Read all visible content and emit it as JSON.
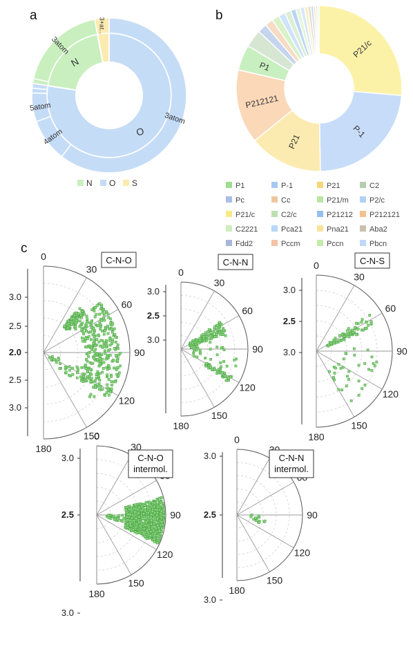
{
  "panel_labels": {
    "a": "a",
    "b": "b",
    "c": "c"
  },
  "chart_data": [
    {
      "id": "a",
      "type": "pie",
      "subtype": "sunburst",
      "legend": [
        "N",
        "O",
        "S"
      ],
      "legend_position": "bottom",
      "colors": {
        "N": "#c9efbf",
        "O": "#c5dcf7",
        "S": "#fcebb0"
      },
      "inner": [
        {
          "name": "N",
          "value": 19.5,
          "label": "N"
        },
        {
          "name": "O",
          "value": 77.5,
          "label": "O"
        },
        {
          "name": "S",
          "value": 3.0,
          "label": ""
        }
      ],
      "outer": [
        {
          "group": "N",
          "value": 18.5,
          "label": "3atom"
        },
        {
          "group": "N",
          "value": 1.0,
          "label": ""
        },
        {
          "group": "O",
          "value": 1.0,
          "label": ""
        },
        {
          "group": "O",
          "value": 1.0,
          "label": ""
        },
        {
          "group": "O",
          "value": 6.0,
          "label": "5atom"
        },
        {
          "group": "O",
          "value": 9.0,
          "label": "4atom"
        },
        {
          "group": "O",
          "value": 60.5,
          "label": "3atom"
        },
        {
          "group": "S",
          "value": 3.0,
          "label": "3+at..."
        }
      ]
    },
    {
      "id": "b",
      "type": "pie",
      "subtype": "donut",
      "slices": [
        {
          "name": "P21/c",
          "value": 26.5,
          "color": "#fbf2a8",
          "label": "P21/c"
        },
        {
          "name": "P-1",
          "value": 23.5,
          "color": "#c7dcf8",
          "label": "P-1"
        },
        {
          "name": "P21",
          "value": 14.5,
          "color": "#fcebb0",
          "label": "P21"
        },
        {
          "name": "P212121",
          "value": 14.5,
          "color": "#fad8b8",
          "label": "P212121"
        },
        {
          "name": "P1",
          "value": 5.0,
          "color": "#c8efbf",
          "label": "P1"
        },
        {
          "name": "C2",
          "value": 3.5,
          "color": "#d6e6d2",
          "label": ""
        },
        {
          "name": "Pc",
          "value": 1.8,
          "color": "#c6d4ee",
          "label": ""
        },
        {
          "name": "Cc",
          "value": 1.6,
          "color": "#f6dcc4",
          "label": ""
        },
        {
          "name": "P21/m",
          "value": 1.5,
          "color": "#d9f2c9",
          "label": ""
        },
        {
          "name": "P2/c",
          "value": 1.3,
          "color": "#cfe3fa",
          "label": ""
        },
        {
          "name": "C2/c",
          "value": 1.2,
          "color": "#dcefd6",
          "label": ""
        },
        {
          "name": "P21212",
          "value": 1.0,
          "color": "#bcd4f5",
          "label": ""
        },
        {
          "name": "C2221",
          "value": 0.9,
          "color": "#e4f6dc",
          "label": ""
        },
        {
          "name": "Pca21",
          "value": 0.8,
          "color": "#d7e7fb",
          "label": ""
        },
        {
          "name": "Pna21",
          "value": 0.7,
          "color": "#fcf0c4",
          "label": ""
        },
        {
          "name": "Aba2",
          "value": 0.6,
          "color": "#e2ddd2",
          "label": ""
        },
        {
          "name": "Fdd2",
          "value": 0.5,
          "color": "#cfd8ea",
          "label": ""
        },
        {
          "name": "Pccm",
          "value": 0.4,
          "color": "#f8dcc8",
          "label": ""
        },
        {
          "name": "Pccn",
          "value": 0.4,
          "color": "#e0f4d4",
          "label": ""
        },
        {
          "name": "Pbcn",
          "value": 0.3,
          "color": "#dcebfb",
          "label": ""
        }
      ],
      "legend": [
        {
          "name": "P1",
          "color": "#9fdd90"
        },
        {
          "name": "P-1",
          "color": "#a8c8f4"
        },
        {
          "name": "P21",
          "color": "#f5d67a"
        },
        {
          "name": "C2",
          "color": "#b5ccb0"
        },
        {
          "name": "Pc",
          "color": "#a9bde6"
        },
        {
          "name": "Cc",
          "color": "#f0c6a0"
        },
        {
          "name": "P21/m",
          "color": "#b9e6a3"
        },
        {
          "name": "P2/c",
          "color": "#b1d2f6"
        },
        {
          "name": "P21/c",
          "color": "#f7ea86"
        },
        {
          "name": "C2/c",
          "color": "#bde0b1"
        },
        {
          "name": "P21212",
          "color": "#96bdf0"
        },
        {
          "name": "P212121",
          "color": "#f5c08d"
        },
        {
          "name": "C2221",
          "color": "#cdeebf"
        },
        {
          "name": "Pca21",
          "color": "#b9d7f8"
        },
        {
          "name": "Pna21",
          "color": "#f8e29b"
        },
        {
          "name": "Aba2",
          "color": "#c9c0ad"
        },
        {
          "name": "Fdd2",
          "color": "#a8b7d6"
        },
        {
          "name": "Pccm",
          "color": "#f2c3a4"
        },
        {
          "name": "Pccn",
          "color": "#c4ebab"
        },
        {
          "name": "Pbcn",
          "color": "#bfdaf8"
        }
      ]
    },
    {
      "id": "c1",
      "type": "scatter",
      "coordinate": "polar",
      "title": "C-N-O",
      "angle_ticks": [
        "0",
        "30",
        "60",
        "90",
        "120",
        "150",
        "180"
      ],
      "radius_ticks_left": [
        "3.0",
        "2.5",
        "2.0",
        "2.5",
        "3.0"
      ],
      "radial_range": [
        2.0,
        3.2
      ],
      "clusters": [
        {
          "theta": [
            38,
            48
          ],
          "r": [
            2.45,
            2.8
          ],
          "count": 90
        },
        {
          "theta": [
            48,
            90
          ],
          "r": [
            2.55,
            3.05
          ],
          "count": 170
        },
        {
          "theta": [
            90,
            125
          ],
          "r": [
            2.6,
            3.1
          ],
          "count": 150
        },
        {
          "theta": [
            110,
            135
          ],
          "r": [
            2.1,
            3.0
          ],
          "count": 40
        }
      ],
      "marker_color": "#4ca84a"
    },
    {
      "id": "c2",
      "type": "scatter",
      "coordinate": "polar",
      "title": "C-N-N",
      "angle_ticks": [
        "0",
        "30",
        "60",
        "90",
        "120",
        "150",
        "180"
      ],
      "radius_ticks_left": [
        "3.0",
        "2.5",
        "3.0"
      ],
      "radial_range": [
        2.5,
        3.2
      ],
      "clusters": [
        {
          "theta": [
            55,
            72
          ],
          "r": [
            2.6,
            3.0
          ],
          "count": 110
        },
        {
          "theta": [
            72,
            100
          ],
          "r": [
            2.6,
            3.0
          ],
          "count": 20
        },
        {
          "theta": [
            100,
            120
          ],
          "r": [
            2.6,
            3.1
          ],
          "count": 15
        },
        {
          "theta": [
            118,
            125
          ],
          "r": [
            2.8,
            3.1
          ],
          "count": 40
        }
      ],
      "marker_color": "#4ca84a"
    },
    {
      "id": "c3",
      "type": "scatter",
      "coordinate": "polar",
      "title": "C-N-S",
      "angle_ticks": [
        "0",
        "30",
        "60",
        "90",
        "120",
        "150",
        "180"
      ],
      "radius_ticks_left": [
        "3.0",
        "2.5",
        "3.0"
      ],
      "radial_range": [
        2.5,
        3.2
      ],
      "clusters": [
        {
          "theta": [
            55,
            68
          ],
          "r": [
            2.6,
            3.1
          ],
          "count": 70
        },
        {
          "theta": [
            80,
            110
          ],
          "r": [
            2.6,
            3.1
          ],
          "count": 14
        },
        {
          "theta": [
            118,
            150
          ],
          "r": [
            2.7,
            3.1
          ],
          "count": 20
        }
      ],
      "marker_color": "#4ca84a"
    },
    {
      "id": "c4",
      "type": "scatter",
      "coordinate": "polar",
      "title": "C-N-O\nintermol.",
      "title_lines": [
        "C-N-O",
        "intermol."
      ],
      "angle_ticks": [
        "0",
        "30",
        "60",
        "90",
        "120",
        "150",
        "180"
      ],
      "radius_ticks_left": [
        "3.0",
        "2.5",
        "3.0"
      ],
      "radial_range": [
        2.5,
        3.2
      ],
      "clusters": [
        {
          "theta": [
            75,
            115
          ],
          "r": [
            2.8,
            3.2
          ],
          "count": 700
        },
        {
          "theta": [
            90,
            105
          ],
          "r": [
            2.6,
            2.8
          ],
          "count": 30
        }
      ],
      "marker_color": "#4ca84a"
    },
    {
      "id": "c5",
      "type": "scatter",
      "coordinate": "polar",
      "title": "C-N-N\nintermol.",
      "title_lines": [
        "C-N-N",
        "intermol."
      ],
      "angle_ticks": [
        "0",
        "30",
        "60",
        "90",
        "120",
        "150",
        "180"
      ],
      "radius_ticks_left": [
        "3.0",
        "2.5",
        "3.0"
      ],
      "radial_range": [
        2.5,
        3.2
      ],
      "clusters": [
        {
          "theta": [
            85,
            110
          ],
          "r": [
            2.65,
            2.85
          ],
          "count": 14
        }
      ],
      "marker_color": "#4ca84a"
    }
  ]
}
